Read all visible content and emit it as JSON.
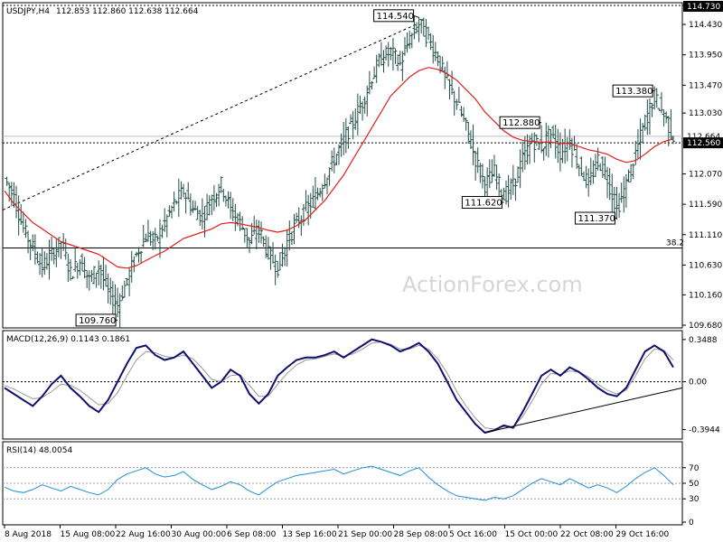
{
  "chart_data": [
    {
      "type": "candlestick",
      "name": "USDJPY,H4",
      "ohlc": [
        112.853,
        112.86,
        112.638,
        112.664
      ],
      "ylim": [
        109.68,
        114.73
      ],
      "y_ticks": [
        109.68,
        110.16,
        110.63,
        111.11,
        111.59,
        112.07,
        112.56,
        113.03,
        113.47,
        113.95,
        114.43,
        114.73
      ],
      "y_tick_labels": [
        "109.680",
        "110.160",
        "110.630",
        "111.110",
        "111.590",
        "112.070",
        "",
        "113.030",
        "113.470",
        "113.950",
        "114.430",
        "114.730"
      ],
      "current_price_label": "112.664",
      "support_label": "112.560",
      "fib_label": "38.2",
      "fib_level": 110.9,
      "callouts": [
        {
          "text": "114.540",
          "value": 114.54
        },
        {
          "text": "109.760",
          "value": 109.76
        },
        {
          "text": "111.620",
          "value": 111.62
        },
        {
          "text": "112.880",
          "value": 112.88
        },
        {
          "text": "111.370",
          "value": 111.37
        },
        {
          "text": "113.380",
          "value": 113.38
        }
      ],
      "close_path": [
        112.0,
        111.7,
        111.2,
        110.9,
        110.6,
        110.8,
        111.0,
        110.5,
        110.7,
        110.4,
        110.6,
        110.2,
        110.0,
        110.4,
        110.8,
        111.1,
        111.0,
        111.3,
        111.6,
        111.8,
        111.5,
        111.4,
        111.7,
        111.9,
        111.5,
        111.3,
        111.0,
        111.2,
        110.8,
        110.6,
        111.0,
        111.3,
        111.5,
        111.7,
        112.0,
        112.3,
        112.6,
        112.9,
        113.2,
        113.6,
        113.9,
        114.0,
        113.8,
        114.2,
        114.45,
        114.2,
        113.9,
        113.5,
        113.2,
        112.8,
        112.3,
        111.9,
        112.1,
        111.7,
        111.9,
        112.3,
        112.6,
        112.5,
        112.7,
        112.4,
        112.6,
        112.2,
        111.9,
        112.3,
        112.0,
        111.5,
        111.9,
        112.4,
        112.9,
        113.3,
        113.0,
        112.66
      ],
      "ma_path": [
        111.8,
        111.6,
        111.45,
        111.3,
        111.2,
        111.1,
        111.0,
        110.95,
        110.9,
        110.85,
        110.8,
        110.7,
        110.6,
        110.58,
        110.62,
        110.7,
        110.78,
        110.85,
        110.95,
        111.05,
        111.1,
        111.15,
        111.2,
        111.28,
        111.3,
        111.28,
        111.25,
        111.22,
        111.18,
        111.15,
        111.18,
        111.25,
        111.35,
        111.5,
        111.65,
        111.85,
        112.05,
        112.3,
        112.55,
        112.8,
        113.05,
        113.3,
        113.45,
        113.6,
        113.7,
        113.75,
        113.72,
        113.65,
        113.55,
        113.4,
        113.25,
        113.05,
        112.9,
        112.75,
        112.65,
        112.6,
        112.58,
        112.57,
        112.57,
        112.55,
        112.55,
        112.5,
        112.45,
        112.42,
        112.38,
        112.3,
        112.25,
        112.28,
        112.38,
        112.5,
        112.58,
        112.62
      ],
      "x_tick_labels": [
        "8 Aug 2018",
        "15 Aug 08:00",
        "22 Aug 16:00",
        "30 Aug 00:00",
        "6 Sep 08:00",
        "13 Sep 16:00",
        "21 Sep 00:00",
        "28 Sep 08:00",
        "5 Oct 16:00",
        "15 Oct 00:00",
        "22 Oct 08:00",
        "29 Oct 16:00"
      ],
      "watermark": "ActionForex.com"
    },
    {
      "type": "line",
      "name": "MACD(12,26,9) 0.1143 0.1861",
      "ylim": [
        -0.45,
        0.4
      ],
      "y_ticks": [
        0.3488,
        0.0,
        -0.3944
      ],
      "y_tick_labels": [
        "0.3488",
        "0.00",
        "-0.3944"
      ],
      "series": [
        {
          "name": "macd",
          "values": [
            -0.05,
            -0.1,
            -0.15,
            -0.2,
            -0.12,
            -0.02,
            0.05,
            -0.05,
            -0.12,
            -0.2,
            -0.25,
            -0.15,
            0.0,
            0.15,
            0.28,
            0.3,
            0.22,
            0.18,
            0.2,
            0.25,
            0.15,
            0.05,
            -0.05,
            0.0,
            0.1,
            0.05,
            -0.1,
            -0.18,
            -0.1,
            0.05,
            0.12,
            0.18,
            0.2,
            0.2,
            0.22,
            0.25,
            0.2,
            0.25,
            0.3,
            0.35,
            0.33,
            0.3,
            0.25,
            0.28,
            0.32,
            0.25,
            0.15,
            0.0,
            -0.15,
            -0.25,
            -0.35,
            -0.42,
            -0.4,
            -0.36,
            -0.38,
            -0.25,
            -0.1,
            0.05,
            0.1,
            0.05,
            0.12,
            0.08,
            0.02,
            -0.05,
            -0.1,
            -0.12,
            -0.05,
            0.1,
            0.25,
            0.3,
            0.25,
            0.12
          ]
        },
        {
          "name": "signal",
          "values": [
            -0.03,
            -0.06,
            -0.1,
            -0.14,
            -0.13,
            -0.08,
            -0.02,
            -0.03,
            -0.07,
            -0.13,
            -0.19,
            -0.18,
            -0.09,
            0.05,
            0.18,
            0.25,
            0.24,
            0.21,
            0.2,
            0.22,
            0.19,
            0.11,
            0.02,
            0.0,
            0.05,
            0.06,
            -0.03,
            -0.12,
            -0.12,
            -0.02,
            0.07,
            0.14,
            0.18,
            0.19,
            0.21,
            0.23,
            0.21,
            0.23,
            0.27,
            0.32,
            0.33,
            0.31,
            0.27,
            0.27,
            0.3,
            0.27,
            0.19,
            0.07,
            -0.08,
            -0.2,
            -0.3,
            -0.38,
            -0.39,
            -0.37,
            -0.37,
            -0.29,
            -0.16,
            -0.02,
            0.07,
            0.06,
            0.09,
            0.08,
            0.04,
            -0.02,
            -0.07,
            -0.1,
            -0.07,
            0.05,
            0.19,
            0.27,
            0.26,
            0.18
          ]
        }
      ],
      "trendline": [
        [
          51,
          -0.42
        ],
        [
          71,
          -0.05
        ]
      ]
    },
    {
      "type": "line",
      "name": "RSI(14) 48.0054",
      "ylim": [
        0,
        100
      ],
      "y_ticks": [
        70,
        50,
        30,
        0
      ],
      "y_tick_labels": [
        "70",
        "50",
        "30",
        "0"
      ],
      "series": [
        {
          "name": "rsi",
          "values": [
            45,
            40,
            38,
            42,
            48,
            44,
            40,
            46,
            42,
            38,
            35,
            42,
            55,
            62,
            66,
            70,
            62,
            58,
            60,
            65,
            55,
            48,
            42,
            46,
            52,
            48,
            40,
            35,
            44,
            52,
            56,
            60,
            62,
            64,
            66,
            68,
            62,
            66,
            70,
            72,
            68,
            64,
            60,
            66,
            70,
            58,
            48,
            40,
            34,
            32,
            30,
            28,
            32,
            30,
            34,
            42,
            50,
            56,
            52,
            48,
            56,
            50,
            44,
            48,
            44,
            38,
            46,
            56,
            64,
            70,
            60,
            48
          ]
        }
      ]
    }
  ]
}
